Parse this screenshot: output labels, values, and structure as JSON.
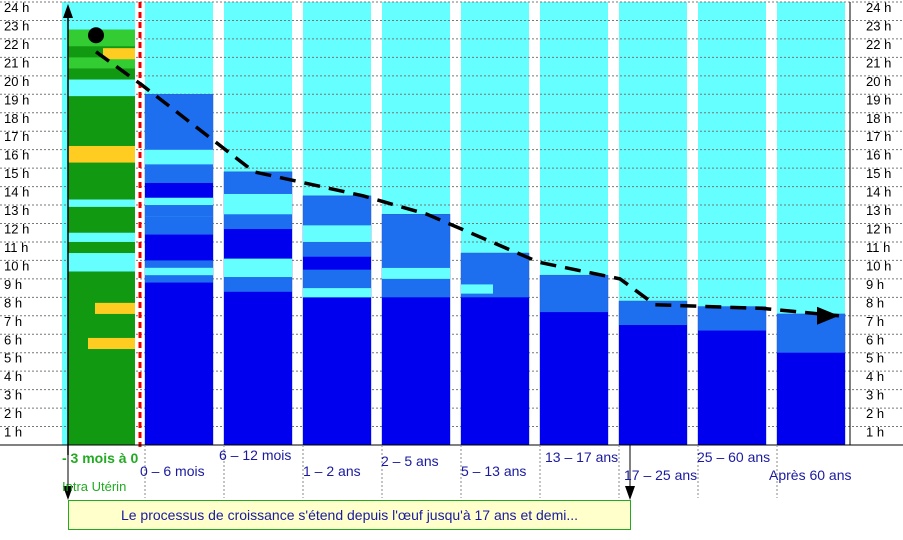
{
  "chart_data": {
    "type": "bar",
    "title": "",
    "xlabel": "",
    "ylabel": "",
    "ylim": [
      0,
      24
    ],
    "y_ticks": [
      "1 h",
      "2 h",
      "3 h",
      "4 h",
      "5 h",
      "6 h",
      "7 h",
      "8 h",
      "9 h",
      "10 h",
      "11 h",
      "12 h",
      "13 h",
      "14 h",
      "15 h",
      "16 h",
      "17 h",
      "18 h",
      "19 h",
      "20 h",
      "21 h",
      "22 h",
      "23 h",
      "24 h"
    ],
    "grid": true,
    "colors": {
      "background": "#66ffff",
      "deep_sleep": "#0000ee",
      "light_sleep": "#1e6ef0",
      "wake_band": "#66ffff",
      "intra_green": "#119911",
      "intra_light": "#33cc33",
      "intra_orange": "#ffcc22",
      "trend": "#000000",
      "divider": "#ee0000",
      "prenatal_label": "#22aa22",
      "category_label": "#1a1aa0"
    },
    "prenatal": {
      "label": "- 3 mois à 0",
      "sublabel": "Intra Utérin",
      "total_hours": 22.5
    },
    "categories": [
      "0 – 6 mois",
      "6 – 12 mois",
      "1 – 2 ans",
      "2 – 5 ans",
      "5 – 13 ans",
      "13 – 17 ans",
      "17 – 25 ans",
      "25 – 60 ans",
      "Après 60 ans"
    ],
    "series": [
      {
        "values": [
          19.0,
          14.8,
          13.5,
          12.5,
          10.4,
          9.2,
          7.8,
          7.5,
          7.1
        ]
      },
      {
        "values": [
          8.8,
          8.3,
          8.0,
          8.0,
          8.0,
          7.2,
          6.5,
          6.2,
          5.0
        ]
      }
    ],
    "trend_line": {
      "x": [
        "- 3 mois à 0",
        "0 – 6 mois",
        "6 – 12 mois",
        "1 – 2 ans",
        "2 – 5 ans",
        "5 – 13 ans",
        "13 – 17 ans",
        "17 – 25 ans",
        "25 – 60 ans",
        "Après 60 ans"
      ],
      "y": [
        21.3,
        19.5,
        14.8,
        13.5,
        12.5,
        9.9,
        9.0,
        7.6,
        7.4,
        7.0
      ]
    },
    "annotation": "Le processus de croissance s'étend depuis l'œuf jusqu'à 17 ans et demi..."
  }
}
